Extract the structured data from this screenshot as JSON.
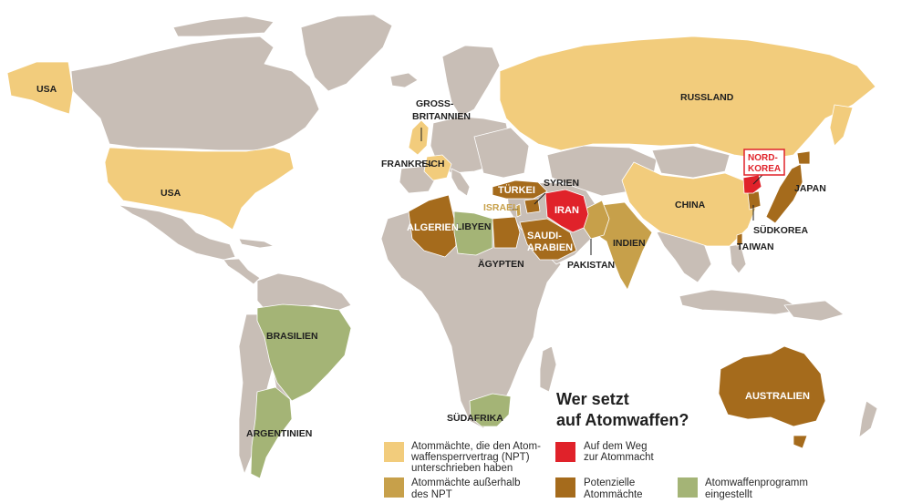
{
  "title": [
    "Wer setzt",
    "auf Atomwaffen?"
  ],
  "colors": {
    "background": "#ffffff",
    "land_other": "#c8beb6",
    "border": "#ffffff",
    "npt_powers": "#f2cc7c",
    "outside_npt": "#c7a04a",
    "path_to_nuclear": "#e0222a",
    "potential_powers": "#a56b1c",
    "abandoned": "#a4b476"
  },
  "labels": {
    "usa_alaska": "USA",
    "usa": "USA",
    "gb": [
      "GROSS-",
      "BRITANNIEN"
    ],
    "france": "FRANKREICH",
    "russia": "RUSSLAND",
    "china": "CHINA",
    "japan": "JAPAN",
    "north_korea": [
      "NORD-",
      "KOREA"
    ],
    "south_korea": "SÜDKOREA",
    "taiwan": "TAIWAN",
    "india": "INDIEN",
    "pakistan": "PAKISTAN",
    "iran": "IRAN",
    "syria": "SYRIEN",
    "turkey": "TÜRKEI",
    "israel": "ISRAEL",
    "saudi": [
      "SAUDI-",
      "ARABIEN"
    ],
    "egypt": "ÄGYPTEN",
    "libya": "LIBYEN",
    "algeria": "ALGERIEN",
    "south_africa": "SÜDAFRIKA",
    "brazil": "BRASILIEN",
    "argentina": "ARGENTINIEN",
    "australia": "AUSTRALIEN"
  },
  "legend": [
    {
      "key": "npt_powers",
      "color": "#f2cc7c",
      "lines": [
        "Atommächte, die den Atom-",
        "waffensperrvertrag (NPT)",
        "unterschrieben haben"
      ]
    },
    {
      "key": "path_to_nuclear",
      "color": "#e0222a",
      "lines": [
        "Auf dem Weg",
        "zur Atommacht"
      ]
    },
    {
      "key": "outside_npt",
      "color": "#c7a04a",
      "lines": [
        "Atommächte außerhalb",
        "des NPT"
      ]
    },
    {
      "key": "potential_powers",
      "color": "#a56b1c",
      "lines": [
        "Potenzielle",
        "Atommächte"
      ]
    },
    {
      "key": "abandoned",
      "color": "#a4b476",
      "lines": [
        "Atomwaffenprogramm",
        "eingestellt"
      ]
    }
  ]
}
